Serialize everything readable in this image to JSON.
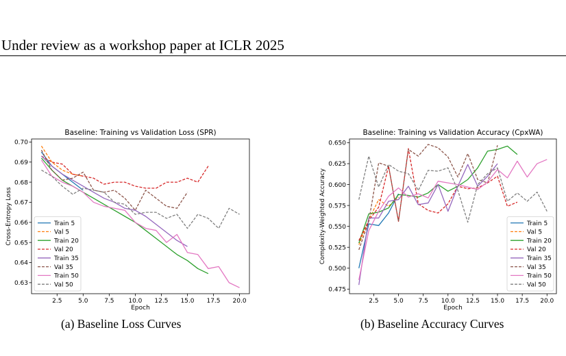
{
  "header": {
    "text": "Under review as a workshop paper at ICLR 2025"
  },
  "captions": {
    "left": "(a) Baseline Loss Curves",
    "right": "(b) Baseline Accuracy Curves"
  },
  "chart_data": [
    {
      "type": "line",
      "title": "Baseline: Training vs Validation Loss (SPR)",
      "xlabel": "Epoch",
      "ylabel": "Cross-Entropy Loss",
      "xlim": [
        0.05,
        20.95
      ],
      "ylim": [
        0.6245,
        0.7015
      ],
      "xticks": [
        2.5,
        5.0,
        7.5,
        10.0,
        12.5,
        15.0,
        17.5,
        20.0
      ],
      "xtick_labels": [
        "2.5",
        "5.0",
        "7.5",
        "10.0",
        "12.5",
        "15.0",
        "17.5",
        "20.0"
      ],
      "yticks": [
        0.63,
        0.64,
        0.65,
        0.66,
        0.67,
        0.68,
        0.69,
        0.7
      ],
      "ytick_labels": [
        "0.63",
        "0.64",
        "0.65",
        "0.66",
        "0.67",
        "0.68",
        "0.69",
        "0.70"
      ],
      "grid": false,
      "legend": "lower-left",
      "series": [
        {
          "name": "Train 5",
          "color": "#1f77b4",
          "dash": "solid",
          "x": [
            1,
            2,
            3,
            4,
            5
          ],
          "y": [
            0.695,
            0.688,
            0.684,
            0.68,
            0.676
          ]
        },
        {
          "name": "Val 5",
          "color": "#ff7f0e",
          "dash": "dashed",
          "x": [
            1,
            2,
            3,
            4,
            5
          ],
          "y": [
            0.698,
            0.69,
            0.686,
            0.684,
            0.683
          ]
        },
        {
          "name": "Train 20",
          "color": "#2ca02c",
          "dash": "solid",
          "x": [
            1,
            2,
            3,
            4,
            5,
            6,
            7,
            8,
            9,
            10,
            11,
            12,
            13,
            14,
            15,
            16,
            17
          ],
          "y": [
            0.692,
            0.686,
            0.681,
            0.678,
            0.675,
            0.672,
            0.669,
            0.666,
            0.663,
            0.66,
            0.656,
            0.652,
            0.648,
            0.644,
            0.641,
            0.637,
            0.6345
          ]
        },
        {
          "name": "Val 20",
          "color": "#d62728",
          "dash": "dashed",
          "x": [
            1,
            2,
            3,
            4,
            5,
            6,
            7,
            8,
            9,
            10,
            11,
            12,
            13,
            14,
            15,
            16,
            17
          ],
          "y": [
            0.693,
            0.69,
            0.689,
            0.684,
            0.683,
            0.682,
            0.679,
            0.68,
            0.68,
            0.678,
            0.677,
            0.677,
            0.68,
            0.68,
            0.682,
            0.68,
            0.688
          ]
        },
        {
          "name": "Train 35",
          "color": "#9467bd",
          "dash": "solid",
          "x": [
            1,
            2,
            3,
            4,
            5,
            6,
            7,
            8,
            9,
            10,
            11,
            12,
            13,
            14,
            15
          ],
          "y": [
            0.693,
            0.688,
            0.684,
            0.681,
            0.678,
            0.675,
            0.672,
            0.67,
            0.667,
            0.666,
            0.663,
            0.659,
            0.655,
            0.651,
            0.648
          ]
        },
        {
          "name": "Val 35",
          "color": "#8c564b",
          "dash": "dashed",
          "x": [
            1,
            2,
            3,
            4,
            5,
            6,
            7,
            8,
            9,
            10,
            11,
            12,
            13,
            14,
            15
          ],
          "y": [
            0.696,
            0.686,
            0.681,
            0.682,
            0.685,
            0.676,
            0.675,
            0.676,
            0.672,
            0.666,
            0.676,
            0.672,
            0.668,
            0.667,
            0.675
          ]
        },
        {
          "name": "Train 50",
          "color": "#e377c2",
          "dash": "solid",
          "x": [
            1,
            2,
            3,
            4,
            5,
            6,
            7,
            8,
            9,
            10,
            11,
            12,
            13,
            14,
            15,
            16,
            17,
            18,
            19,
            20
          ],
          "y": [
            0.691,
            0.683,
            0.68,
            0.678,
            0.675,
            0.67,
            0.668,
            0.667,
            0.666,
            0.66,
            0.657,
            0.656,
            0.65,
            0.654,
            0.645,
            0.644,
            0.637,
            0.638,
            0.63,
            0.6275
          ]
        },
        {
          "name": "Val 50",
          "color": "#7f7f7f",
          "dash": "dashed",
          "x": [
            1,
            2,
            3,
            4,
            5,
            6,
            7,
            8,
            9,
            10,
            11,
            12,
            13,
            14,
            15,
            16,
            17,
            18,
            19,
            20
          ],
          "y": [
            0.686,
            0.683,
            0.678,
            0.674,
            0.677,
            0.676,
            0.675,
            0.67,
            0.669,
            0.664,
            0.665,
            0.665,
            0.662,
            0.664,
            0.657,
            0.664,
            0.662,
            0.657,
            0.667,
            0.664
          ]
        }
      ]
    },
    {
      "type": "line",
      "title": "Baseline: Training vs Validation Accuracy (CpxWA)",
      "xlabel": "Epoch",
      "ylabel": "Complexity-Weighted Accuracy",
      "xlim": [
        0.05,
        20.95
      ],
      "ylim": [
        0.4695,
        0.6545
      ],
      "xticks": [
        2.5,
        5.0,
        7.5,
        10.0,
        12.5,
        15.0,
        17.5,
        20.0
      ],
      "xtick_labels": [
        "2.5",
        "5.0",
        "7.5",
        "10.0",
        "12.5",
        "15.0",
        "17.5",
        "20.0"
      ],
      "yticks": [
        0.475,
        0.5,
        0.525,
        0.55,
        0.575,
        0.6,
        0.625,
        0.65
      ],
      "ytick_labels": [
        "0.475",
        "0.500",
        "0.525",
        "0.550",
        "0.575",
        "0.600",
        "0.625",
        "0.650"
      ],
      "grid": false,
      "legend": "lower-right",
      "series": [
        {
          "name": "Train 5",
          "color": "#1f77b4",
          "dash": "solid",
          "x": [
            1,
            2,
            3,
            4,
            5
          ],
          "y": [
            0.5,
            0.553,
            0.551,
            0.566,
            0.589
          ]
        },
        {
          "name": "Val 5",
          "color": "#ff7f0e",
          "dash": "dashed",
          "x": [
            1,
            2,
            3,
            4,
            5
          ],
          "y": [
            0.528,
            0.558,
            0.582,
            0.574,
            0.585
          ]
        },
        {
          "name": "Train 20",
          "color": "#2ca02c",
          "dash": "solid",
          "x": [
            1,
            2,
            3,
            4,
            5,
            6,
            7,
            8,
            9,
            10,
            11,
            12,
            13,
            14,
            15,
            16,
            17
          ],
          "y": [
            0.53,
            0.565,
            0.567,
            0.572,
            0.588,
            0.587,
            0.585,
            0.59,
            0.6,
            0.592,
            0.598,
            0.606,
            0.62,
            0.64,
            0.642,
            0.646,
            0.636
          ]
        },
        {
          "name": "Val 20",
          "color": "#d62728",
          "dash": "dashed",
          "x": [
            1,
            2,
            3,
            4,
            5,
            6,
            7,
            8,
            9,
            10,
            11,
            12,
            13,
            14,
            15,
            16,
            17
          ],
          "y": [
            0.533,
            0.557,
            0.573,
            0.622,
            0.556,
            0.643,
            0.577,
            0.569,
            0.566,
            0.577,
            0.598,
            0.595,
            0.596,
            0.602,
            0.61,
            0.574,
            0.579
          ]
        },
        {
          "name": "Train 35",
          "color": "#9467bd",
          "dash": "solid",
          "x": [
            1,
            2,
            3,
            4,
            5,
            6,
            7,
            8,
            9,
            10,
            11,
            12,
            13,
            14,
            15
          ],
          "y": [
            0.48,
            0.56,
            0.56,
            0.58,
            0.582,
            0.598,
            0.576,
            0.578,
            0.6,
            0.568,
            0.598,
            0.624,
            0.598,
            0.61,
            0.625
          ]
        },
        {
          "name": "Val 35",
          "color": "#8c564b",
          "dash": "dashed",
          "x": [
            1,
            2,
            3,
            4,
            5,
            6,
            7,
            8,
            9,
            10,
            11,
            12,
            13,
            14,
            15
          ],
          "y": [
            0.522,
            0.556,
            0.626,
            0.622,
            0.556,
            0.642,
            0.634,
            0.648,
            0.644,
            0.633,
            0.609,
            0.637,
            0.606,
            0.602,
            0.647
          ]
        },
        {
          "name": "Train 50",
          "color": "#e377c2",
          "dash": "solid",
          "x": [
            1,
            2,
            3,
            4,
            5,
            6,
            7,
            8,
            9,
            10,
            11,
            12,
            13,
            14,
            15,
            16,
            17,
            18,
            19,
            20
          ],
          "y": [
            0.486,
            0.545,
            0.568,
            0.586,
            0.596,
            0.585,
            0.589,
            0.584,
            0.604,
            0.602,
            0.6,
            0.597,
            0.594,
            0.603,
            0.618,
            0.608,
            0.628,
            0.609,
            0.625,
            0.63
          ]
        },
        {
          "name": "Val 50",
          "color": "#7f7f7f",
          "dash": "dashed",
          "x": [
            1,
            2,
            3,
            4,
            5,
            6,
            7,
            8,
            9,
            10,
            11,
            12,
            13,
            14,
            15,
            16,
            17,
            18,
            19,
            20
          ],
          "y": [
            0.582,
            0.634,
            0.597,
            0.624,
            0.616,
            0.613,
            0.593,
            0.617,
            0.616,
            0.62,
            0.593,
            0.555,
            0.6,
            0.613,
            0.62,
            0.58,
            0.59,
            0.58,
            0.591,
            0.568
          ]
        }
      ]
    }
  ]
}
